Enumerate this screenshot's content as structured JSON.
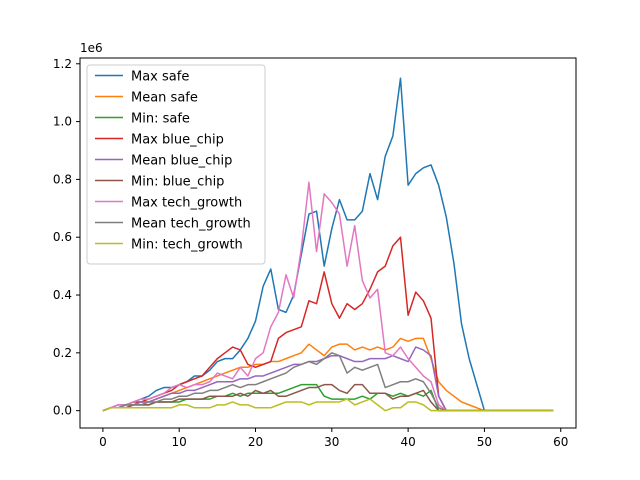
{
  "chart_data": {
    "type": "line",
    "title": "",
    "xlabel": "",
    "ylabel": "",
    "scale_label": "1e6",
    "xlim": [
      -3,
      62
    ],
    "ylim": [
      -0.06,
      1.22
    ],
    "xticks": [
      0,
      10,
      20,
      30,
      40,
      50,
      60
    ],
    "yticks": [
      0.0,
      0.2,
      0.4,
      0.6,
      0.8,
      1.0,
      1.2
    ],
    "xtick_labels": [
      "0",
      "10",
      "20",
      "30",
      "40",
      "50",
      "60"
    ],
    "ytick_labels": [
      "0.0",
      "0.2",
      "0.4",
      "0.6",
      "0.8",
      "1.0",
      "1.2"
    ],
    "grid": false,
    "legend_position": "top-left",
    "x": [
      0,
      1,
      2,
      3,
      4,
      5,
      6,
      7,
      8,
      9,
      10,
      11,
      12,
      13,
      14,
      15,
      16,
      17,
      18,
      19,
      20,
      21,
      22,
      23,
      24,
      25,
      26,
      27,
      28,
      29,
      30,
      31,
      32,
      33,
      34,
      35,
      36,
      37,
      38,
      39,
      40,
      41,
      42,
      43,
      44,
      45,
      46,
      47,
      48,
      49,
      50,
      51,
      52,
      53,
      54,
      55,
      56,
      57,
      58,
      59
    ],
    "series": [
      {
        "name": "Max safe",
        "color": "#1f77b4",
        "values": [
          0.0,
          0.01,
          0.02,
          0.02,
          0.03,
          0.04,
          0.05,
          0.07,
          0.08,
          0.08,
          0.09,
          0.1,
          0.12,
          0.12,
          0.14,
          0.17,
          0.18,
          0.18,
          0.21,
          0.25,
          0.31,
          0.43,
          0.49,
          0.35,
          0.34,
          0.4,
          0.54,
          0.68,
          0.69,
          0.5,
          0.63,
          0.73,
          0.66,
          0.66,
          0.69,
          0.82,
          0.73,
          0.88,
          0.95,
          1.15,
          0.78,
          0.82,
          0.84,
          0.85,
          0.78,
          0.67,
          0.51,
          0.3,
          0.18,
          0.09,
          0.0,
          0,
          0,
          0,
          0,
          0,
          0,
          0,
          0,
          0
        ]
      },
      {
        "name": "Mean safe",
        "color": "#ff7f0e",
        "values": [
          0.0,
          0.01,
          0.01,
          0.02,
          0.02,
          0.03,
          0.03,
          0.04,
          0.05,
          0.06,
          0.07,
          0.08,
          0.09,
          0.1,
          0.11,
          0.12,
          0.13,
          0.14,
          0.15,
          0.15,
          0.16,
          0.16,
          0.17,
          0.17,
          0.18,
          0.19,
          0.2,
          0.23,
          0.21,
          0.19,
          0.22,
          0.23,
          0.23,
          0.21,
          0.22,
          0.21,
          0.22,
          0.21,
          0.22,
          0.25,
          0.24,
          0.25,
          0.25,
          0.18,
          0.1,
          0.07,
          0.05,
          0.03,
          0.02,
          0.01,
          0.0,
          0,
          0,
          0,
          0,
          0,
          0,
          0,
          0,
          0
        ]
      },
      {
        "name": "Min: safe",
        "color": "#2ca02c",
        "values": [
          0.0,
          0.01,
          0.01,
          0.01,
          0.02,
          0.02,
          0.02,
          0.03,
          0.03,
          0.03,
          0.03,
          0.04,
          0.04,
          0.04,
          0.04,
          0.05,
          0.05,
          0.06,
          0.05,
          0.06,
          0.06,
          0.06,
          0.06,
          0.06,
          0.07,
          0.08,
          0.09,
          0.09,
          0.09,
          0.05,
          0.04,
          0.04,
          0.04,
          0.04,
          0.05,
          0.04,
          0.06,
          0.06,
          0.05,
          0.06,
          0.05,
          0.06,
          0.05,
          0.07,
          0.0,
          0,
          0,
          0,
          0,
          0,
          0,
          0,
          0,
          0,
          0,
          0,
          0,
          0,
          0,
          0
        ]
      },
      {
        "name": "Max blue_chip",
        "color": "#d62728",
        "values": [
          0.0,
          0.01,
          0.01,
          0.02,
          0.03,
          0.03,
          0.04,
          0.05,
          0.06,
          0.07,
          0.09,
          0.1,
          0.11,
          0.12,
          0.15,
          0.18,
          0.2,
          0.22,
          0.21,
          0.16,
          0.15,
          0.16,
          0.17,
          0.25,
          0.27,
          0.28,
          0.29,
          0.38,
          0.37,
          0.48,
          0.37,
          0.32,
          0.37,
          0.35,
          0.37,
          0.42,
          0.48,
          0.5,
          0.57,
          0.6,
          0.33,
          0.41,
          0.38,
          0.32,
          0.05,
          0.0,
          0,
          0,
          0,
          0,
          0,
          0,
          0,
          0,
          0,
          0,
          0,
          0,
          0,
          0
        ]
      },
      {
        "name": "Mean blue_chip",
        "color": "#9467bd",
        "values": [
          0.0,
          0.01,
          0.01,
          0.02,
          0.02,
          0.03,
          0.03,
          0.04,
          0.05,
          0.06,
          0.06,
          0.07,
          0.07,
          0.08,
          0.09,
          0.1,
          0.1,
          0.1,
          0.11,
          0.11,
          0.12,
          0.12,
          0.13,
          0.14,
          0.15,
          0.16,
          0.16,
          0.17,
          0.17,
          0.18,
          0.19,
          0.19,
          0.18,
          0.17,
          0.17,
          0.18,
          0.18,
          0.18,
          0.19,
          0.18,
          0.17,
          0.22,
          0.21,
          0.19,
          0.05,
          0.0,
          0,
          0,
          0,
          0,
          0,
          0,
          0,
          0,
          0,
          0,
          0,
          0,
          0,
          0
        ]
      },
      {
        "name": "Min: blue_chip",
        "color": "#8c564b",
        "values": [
          0.0,
          0.01,
          0.01,
          0.01,
          0.02,
          0.02,
          0.02,
          0.03,
          0.03,
          0.03,
          0.04,
          0.04,
          0.04,
          0.04,
          0.05,
          0.05,
          0.05,
          0.05,
          0.06,
          0.05,
          0.07,
          0.06,
          0.07,
          0.05,
          0.05,
          0.06,
          0.07,
          0.08,
          0.08,
          0.09,
          0.09,
          0.07,
          0.06,
          0.09,
          0.09,
          0.06,
          0.06,
          0.06,
          0.04,
          0.05,
          0.05,
          0.06,
          0.07,
          0.03,
          0.0,
          0,
          0,
          0,
          0,
          0,
          0,
          0,
          0,
          0,
          0,
          0,
          0,
          0,
          0,
          0
        ]
      },
      {
        "name": "Max tech_growth",
        "color": "#e377c2",
        "values": [
          0.0,
          0.01,
          0.02,
          0.02,
          0.03,
          0.04,
          0.04,
          0.05,
          0.06,
          0.08,
          0.09,
          0.08,
          0.09,
          0.09,
          0.1,
          0.13,
          0.12,
          0.11,
          0.15,
          0.12,
          0.18,
          0.2,
          0.29,
          0.34,
          0.47,
          0.39,
          0.56,
          0.79,
          0.55,
          0.75,
          0.72,
          0.68,
          0.5,
          0.64,
          0.45,
          0.39,
          0.42,
          0.2,
          0.19,
          0.22,
          0.18,
          0.15,
          0.12,
          0.1,
          0.02,
          0.0,
          0,
          0,
          0,
          0,
          0,
          0,
          0,
          0,
          0,
          0,
          0,
          0,
          0,
          0
        ]
      },
      {
        "name": "Mean tech_growth",
        "color": "#7f7f7f",
        "values": [
          0.0,
          0.01,
          0.01,
          0.02,
          0.02,
          0.02,
          0.03,
          0.03,
          0.04,
          0.04,
          0.05,
          0.05,
          0.06,
          0.06,
          0.07,
          0.07,
          0.08,
          0.09,
          0.08,
          0.09,
          0.09,
          0.1,
          0.11,
          0.12,
          0.13,
          0.15,
          0.16,
          0.17,
          0.16,
          0.18,
          0.2,
          0.19,
          0.13,
          0.15,
          0.14,
          0.15,
          0.16,
          0.08,
          0.09,
          0.1,
          0.1,
          0.11,
          0.1,
          0.06,
          0.01,
          0.0,
          0,
          0,
          0,
          0,
          0,
          0,
          0,
          0,
          0,
          0,
          0,
          0,
          0,
          0
        ]
      },
      {
        "name": "Min: tech_growth",
        "color": "#bcbd22",
        "values": [
          0.0,
          0.01,
          0.01,
          0.01,
          0.01,
          0.01,
          0.01,
          0.01,
          0.01,
          0.01,
          0.02,
          0.02,
          0.01,
          0.01,
          0.01,
          0.02,
          0.02,
          0.03,
          0.02,
          0.02,
          0.01,
          0.01,
          0.01,
          0.02,
          0.03,
          0.03,
          0.03,
          0.02,
          0.03,
          0.03,
          0.03,
          0.03,
          0.04,
          0.02,
          0.03,
          0.04,
          0.02,
          0.0,
          0.01,
          0.01,
          0.03,
          0.03,
          0.02,
          0.0,
          0.0,
          0,
          0,
          0,
          0,
          0,
          0,
          0,
          0,
          0,
          0,
          0,
          0,
          0,
          0,
          0
        ]
      }
    ]
  }
}
